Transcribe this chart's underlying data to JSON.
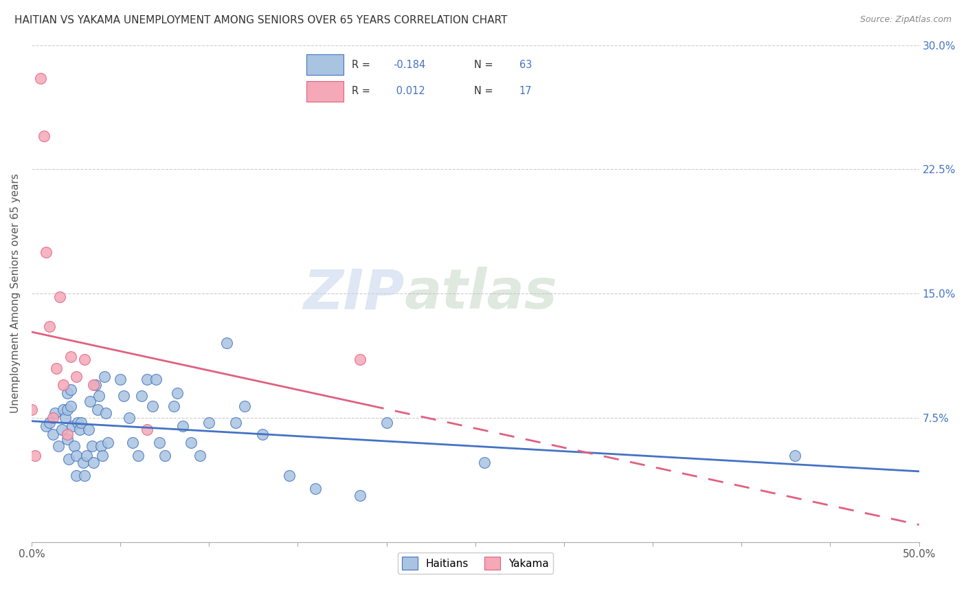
{
  "title": "HAITIAN VS YAKAMA UNEMPLOYMENT AMONG SENIORS OVER 65 YEARS CORRELATION CHART",
  "source": "Source: ZipAtlas.com",
  "ylabel": "Unemployment Among Seniors over 65 years",
  "xlim": [
    0,
    0.5
  ],
  "ylim": [
    0,
    0.3
  ],
  "xticks": [
    0.0,
    0.05,
    0.1,
    0.15,
    0.2,
    0.25,
    0.3,
    0.35,
    0.4,
    0.45,
    0.5
  ],
  "xtick_labels_sparse": {
    "0.0": "0.0%",
    "0.5": "50.0%"
  },
  "yticks": [
    0.0,
    0.075,
    0.15,
    0.225,
    0.3
  ],
  "ytick_labels_right": [
    "",
    "7.5%",
    "15.0%",
    "22.5%",
    "30.0%"
  ],
  "watermark_zip": "ZIP",
  "watermark_atlas": "atlas",
  "haitians_color": "#a8c4e0",
  "yakama_color": "#f4a8b8",
  "haitians_line_color": "#4472c4",
  "yakama_line_color": "#e06080",
  "background_color": "#ffffff",
  "haitians_x": [
    0.008,
    0.01,
    0.012,
    0.013,
    0.015,
    0.017,
    0.018,
    0.019,
    0.02,
    0.02,
    0.02,
    0.021,
    0.022,
    0.022,
    0.023,
    0.024,
    0.025,
    0.025,
    0.026,
    0.027,
    0.028,
    0.029,
    0.03,
    0.031,
    0.032,
    0.033,
    0.034,
    0.035,
    0.036,
    0.037,
    0.038,
    0.039,
    0.04,
    0.041,
    0.042,
    0.043,
    0.05,
    0.052,
    0.055,
    0.057,
    0.06,
    0.062,
    0.065,
    0.068,
    0.07,
    0.072,
    0.075,
    0.08,
    0.082,
    0.085,
    0.09,
    0.095,
    0.1,
    0.11,
    0.115,
    0.12,
    0.13,
    0.145,
    0.16,
    0.185,
    0.2,
    0.255,
    0.43
  ],
  "haitians_y": [
    0.07,
    0.072,
    0.065,
    0.078,
    0.058,
    0.068,
    0.08,
    0.075,
    0.09,
    0.08,
    0.062,
    0.05,
    0.082,
    0.092,
    0.07,
    0.058,
    0.04,
    0.052,
    0.072,
    0.068,
    0.072,
    0.048,
    0.04,
    0.052,
    0.068,
    0.085,
    0.058,
    0.048,
    0.095,
    0.08,
    0.088,
    0.058,
    0.052,
    0.1,
    0.078,
    0.06,
    0.098,
    0.088,
    0.075,
    0.06,
    0.052,
    0.088,
    0.098,
    0.082,
    0.098,
    0.06,
    0.052,
    0.082,
    0.09,
    0.07,
    0.06,
    0.052,
    0.072,
    0.12,
    0.072,
    0.082,
    0.065,
    0.04,
    0.032,
    0.028,
    0.072,
    0.048,
    0.052
  ],
  "yakama_x": [
    0.0,
    0.002,
    0.005,
    0.007,
    0.008,
    0.01,
    0.012,
    0.014,
    0.016,
    0.018,
    0.02,
    0.022,
    0.025,
    0.03,
    0.035,
    0.065,
    0.185
  ],
  "yakama_y": [
    0.08,
    0.052,
    0.28,
    0.245,
    0.175,
    0.13,
    0.075,
    0.105,
    0.148,
    0.095,
    0.065,
    0.112,
    0.1,
    0.11,
    0.095,
    0.068,
    0.11
  ]
}
